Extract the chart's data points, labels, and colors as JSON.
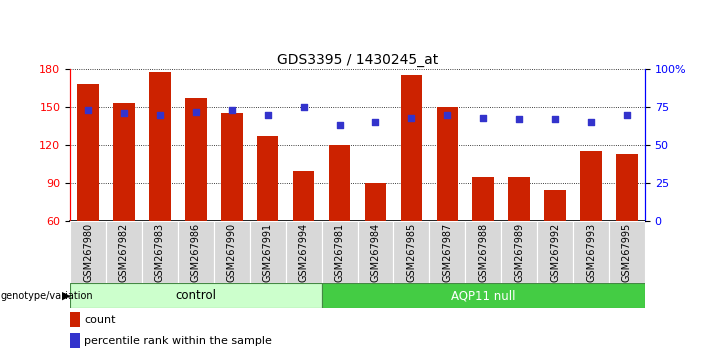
{
  "title": "GDS3395 / 1430245_at",
  "categories": [
    "GSM267980",
    "GSM267982",
    "GSM267983",
    "GSM267986",
    "GSM267990",
    "GSM267991",
    "GSM267994",
    "GSM267981",
    "GSM267984",
    "GSM267985",
    "GSM267987",
    "GSM267988",
    "GSM267989",
    "GSM267992",
    "GSM267993",
    "GSM267995"
  ],
  "bar_values": [
    168,
    153,
    178,
    157,
    145,
    127,
    100,
    120,
    90,
    175,
    150,
    95,
    95,
    85,
    115,
    113
  ],
  "percentile_values": [
    73,
    71,
    70,
    72,
    73,
    70,
    75,
    63,
    65,
    68,
    70,
    68,
    67,
    67,
    65,
    70
  ],
  "bar_color": "#cc2200",
  "dot_color": "#3333cc",
  "ylim_left": [
    60,
    180
  ],
  "ylim_right": [
    0,
    100
  ],
  "yticks_left": [
    60,
    90,
    120,
    150,
    180
  ],
  "yticks_right": [
    0,
    25,
    50,
    75,
    100
  ],
  "control_count": 7,
  "control_label": "control",
  "aqp_label": "AQP11 null",
  "control_color": "#ccffcc",
  "aqp_color": "#44cc44",
  "genotype_label": "genotype/variation",
  "legend_count_label": "count",
  "legend_pct_label": "percentile rank within the sample",
  "title_fontsize": 10,
  "tick_label_fontsize": 7,
  "axis_label_fontsize": 8,
  "bar_color_legend": "#cc2200",
  "dot_color_legend": "#3333cc"
}
